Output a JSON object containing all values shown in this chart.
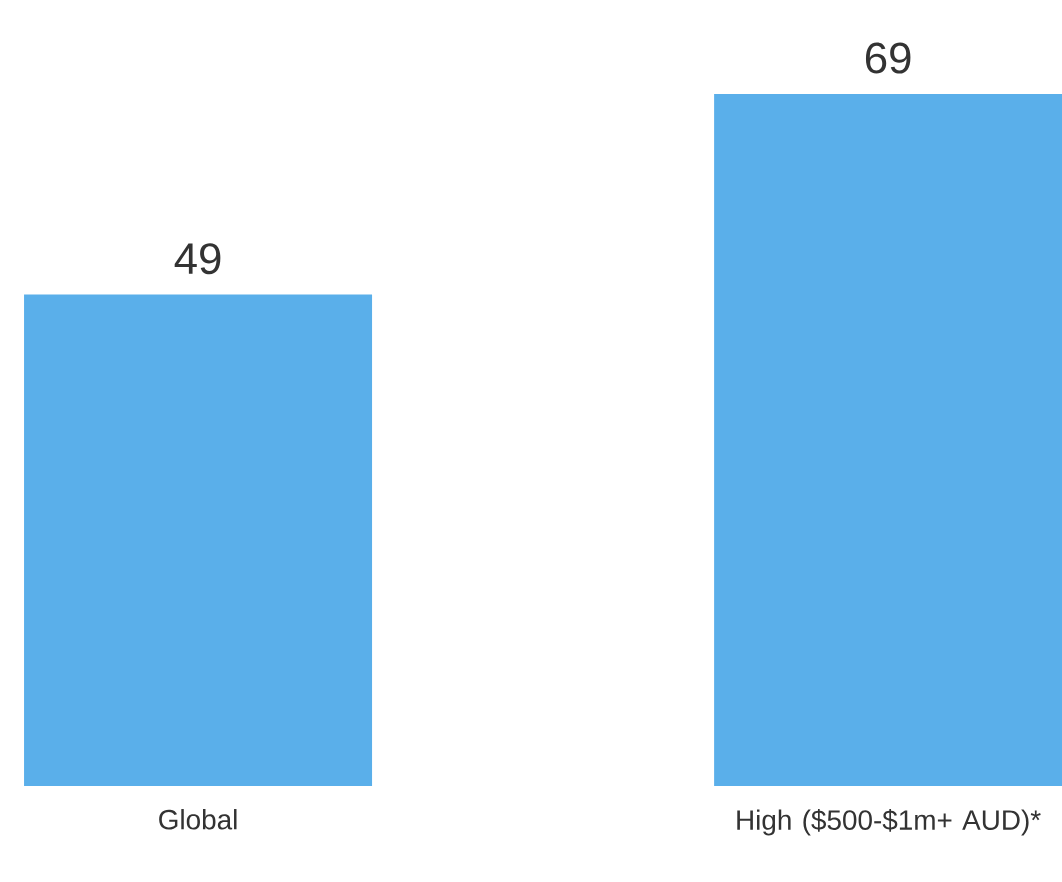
{
  "chart_data": {
    "type": "bar",
    "categories": [
      "Global",
      "High ($500-$1m+ AUD)*"
    ],
    "values": [
      49,
      69
    ],
    "color": "#5aafea",
    "data_labels": true
  }
}
